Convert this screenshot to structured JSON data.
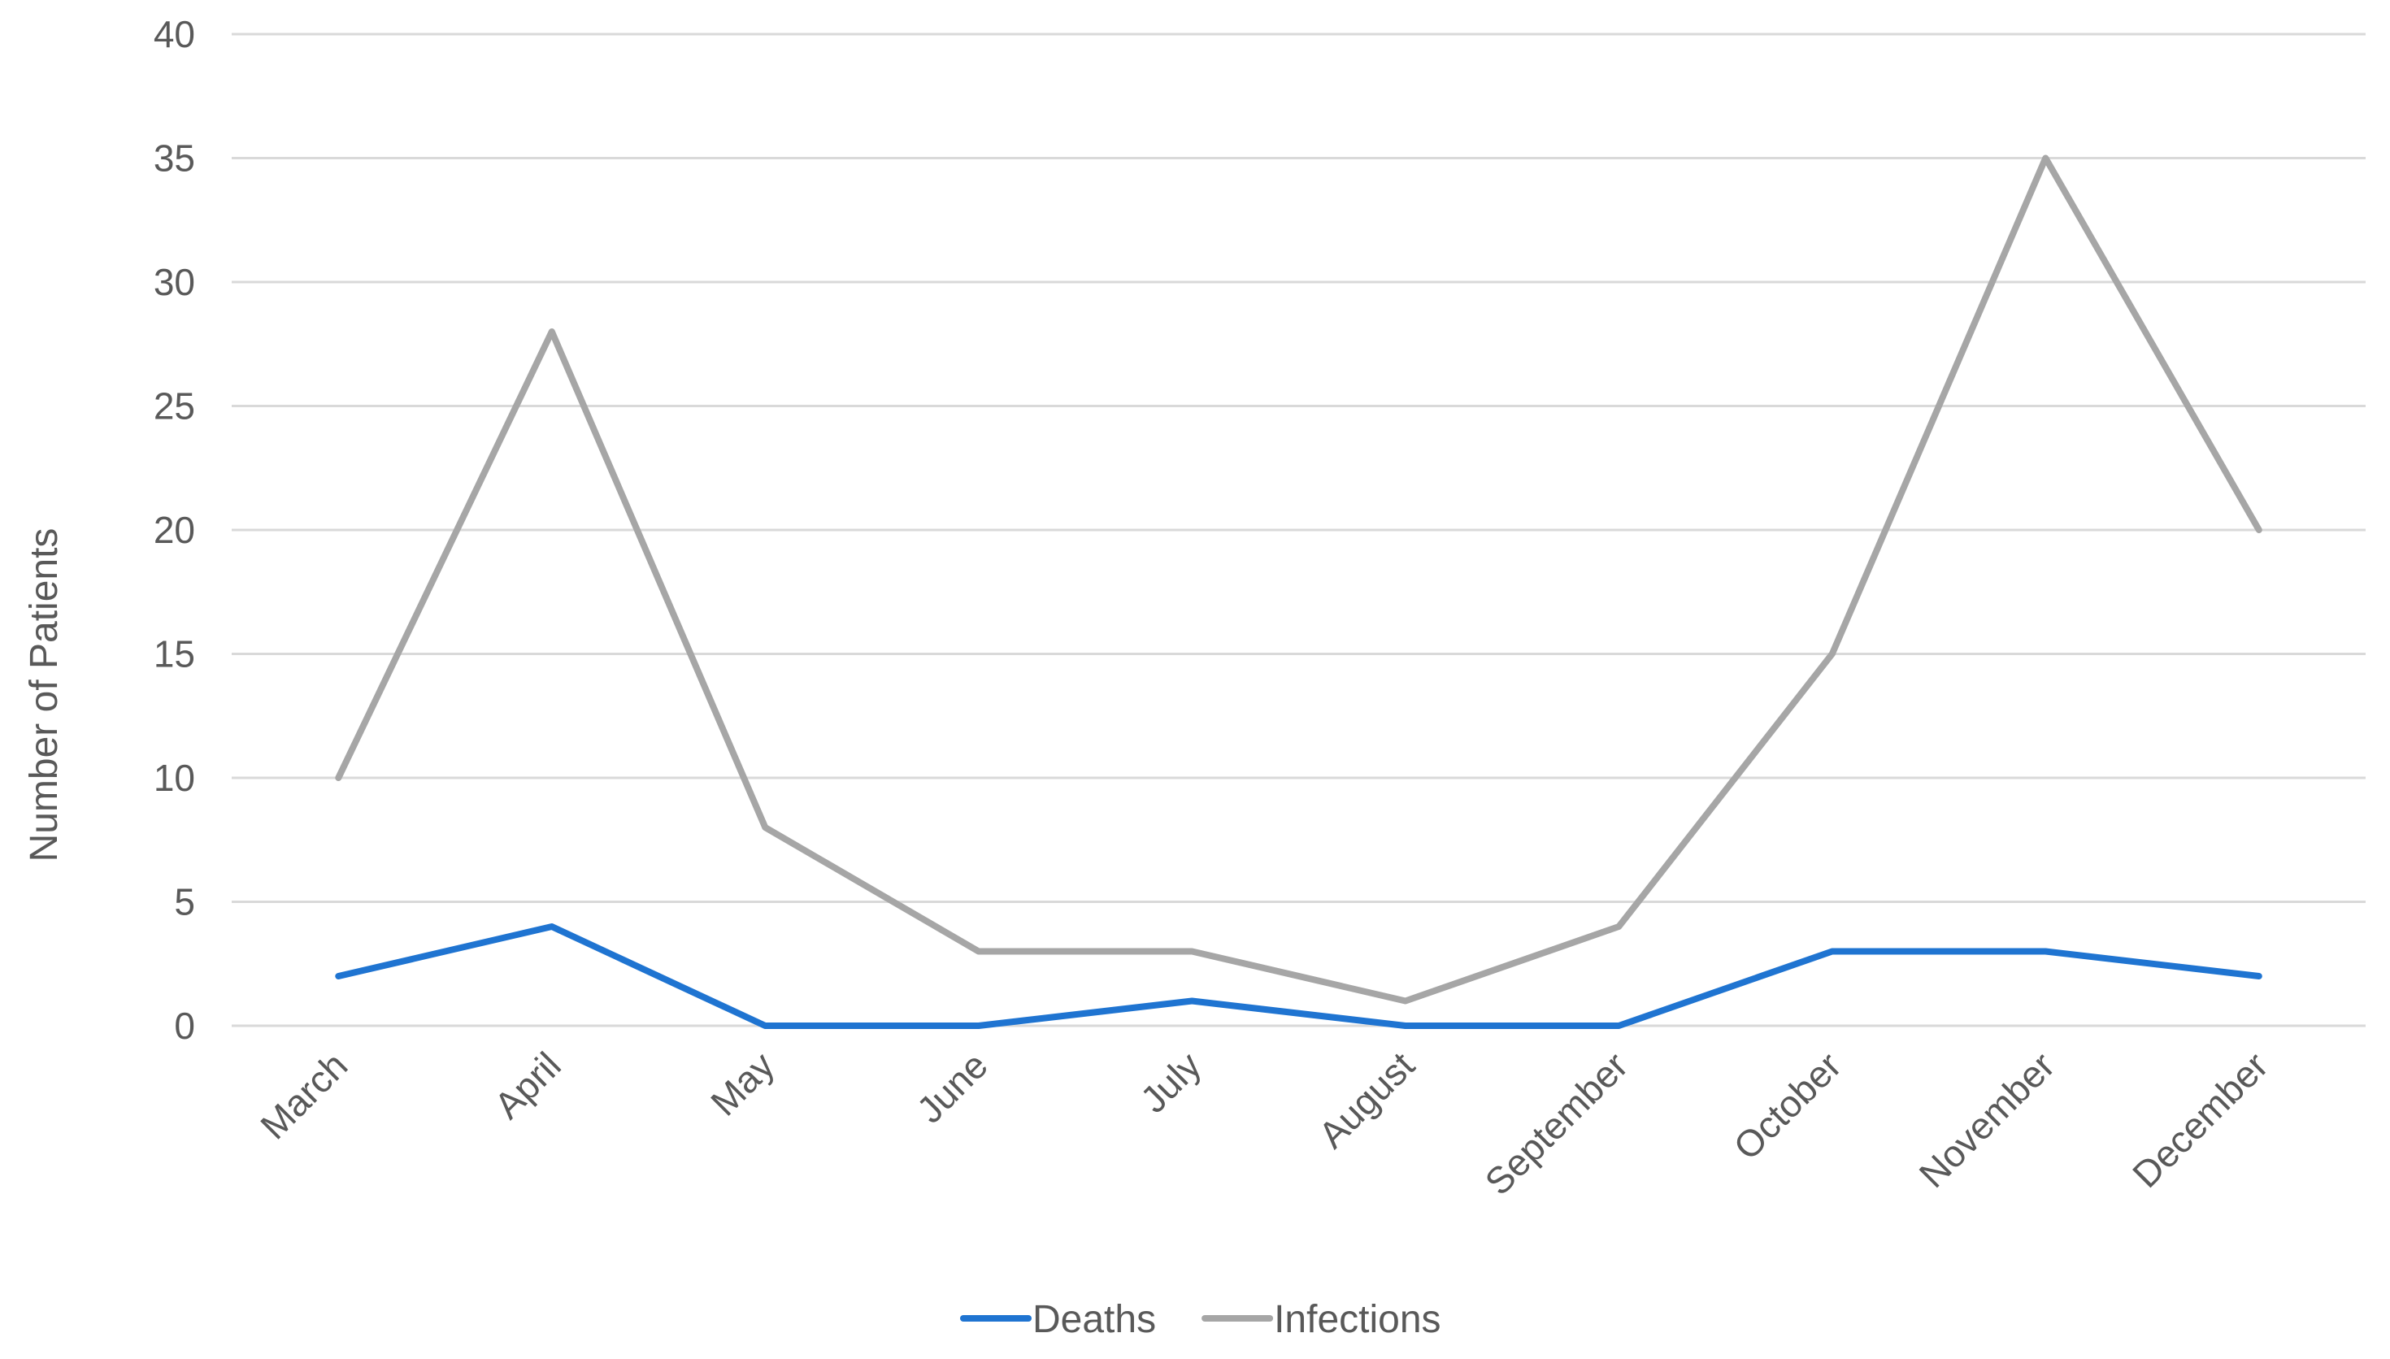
{
  "chart_data": {
    "type": "line",
    "title": "",
    "xlabel": "",
    "ylabel": "Number of Patients",
    "ylim": [
      0,
      40
    ],
    "yticks": [
      0,
      5,
      10,
      15,
      20,
      25,
      30,
      35,
      40
    ],
    "grid": true,
    "legend_position": "bottom",
    "categories": [
      "March",
      "April",
      "May",
      "June",
      "July",
      "August",
      "September",
      "October",
      "November",
      "December"
    ],
    "series": [
      {
        "name": "Deaths",
        "color": "#1f74d1",
        "values": [
          2,
          4,
          0,
          0,
          1,
          0,
          0,
          3,
          3,
          2
        ]
      },
      {
        "name": "Infections",
        "color": "#a6a6a6",
        "values": [
          10,
          28,
          8,
          3,
          3,
          1,
          4,
          15,
          35,
          20
        ]
      }
    ]
  }
}
